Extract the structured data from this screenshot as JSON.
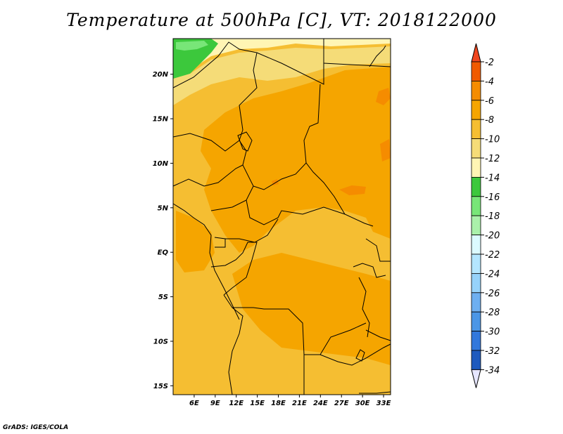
{
  "title": "Temperature at 500hPa [C], VT: 2018122000",
  "credit": "GrADS: IGES/COLA",
  "map": {
    "lon_range": [
      3,
      34
    ],
    "lat_range": [
      -16,
      24
    ],
    "lat_ticks": [
      {
        "value": 20,
        "label": "20N"
      },
      {
        "value": 15,
        "label": "15N"
      },
      {
        "value": 10,
        "label": "10N"
      },
      {
        "value": 5,
        "label": "5N"
      },
      {
        "value": 0,
        "label": "EQ"
      },
      {
        "value": -5,
        "label": "5S"
      },
      {
        "value": -10,
        "label": "10S"
      },
      {
        "value": -15,
        "label": "15S"
      }
    ],
    "lon_ticks": [
      {
        "value": 6,
        "label": "6E"
      },
      {
        "value": 9,
        "label": "9E"
      },
      {
        "value": 12,
        "label": "12E"
      },
      {
        "value": 15,
        "label": "15E"
      },
      {
        "value": 18,
        "label": "18E"
      },
      {
        "value": 21,
        "label": "21E"
      },
      {
        "value": 24,
        "label": "24E"
      },
      {
        "value": 27,
        "label": "27E"
      },
      {
        "value": 30,
        "label": "30E"
      },
      {
        "value": 33,
        "label": "33E"
      }
    ]
  },
  "colorbar": {
    "labels": [
      "-2",
      "-4",
      "-6",
      "-8",
      "-10",
      "-12",
      "-14",
      "-16",
      "-18",
      "-20",
      "-22",
      "-24",
      "-26",
      "-28",
      "-30",
      "-32",
      "-34"
    ],
    "top_color": "#f0461e",
    "bottom_color": "#e6e6ff",
    "colors": [
      "#f05a00",
      "#f58c00",
      "#f5a500",
      "#f5be32",
      "#f5dc78",
      "#fff5b4",
      "#3cc83c",
      "#78e678",
      "#aaf0aa",
      "#dcfaff",
      "#b4e6ff",
      "#96d2fa",
      "#6eaff0",
      "#4b96e6",
      "#3278dc",
      "#1e5abe",
      "#14329b",
      "#0a1464"
    ]
  },
  "regions": [
    {
      "temp": -12,
      "color": "#fff5b4"
    },
    {
      "temp": -14,
      "color": "#3cc83c"
    },
    {
      "temp": -10,
      "color": "#f5dc78"
    },
    {
      "temp": -8,
      "color": "#f5be32"
    },
    {
      "temp": -6,
      "color": "#f5a500"
    },
    {
      "temp": -4,
      "color": "#f58c00"
    }
  ]
}
